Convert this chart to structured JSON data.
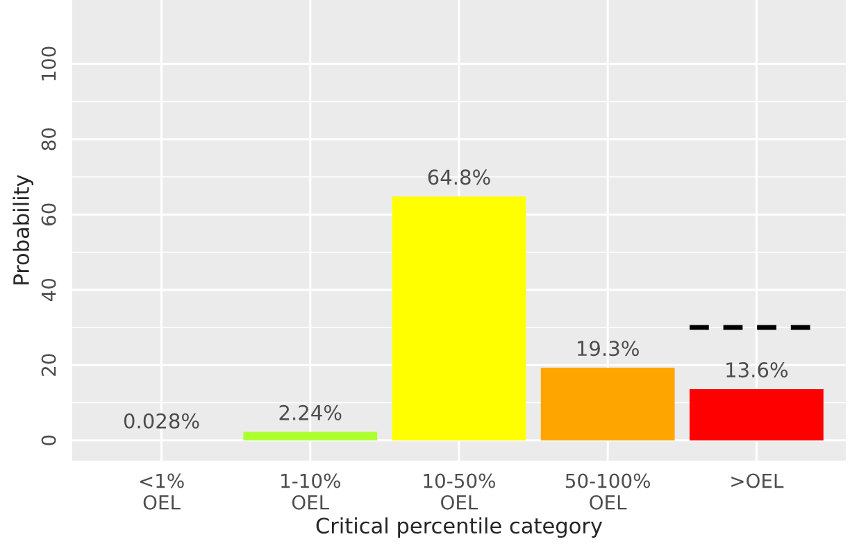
{
  "chart_data": {
    "type": "bar",
    "categories": [
      "<1%\nOEL",
      "1-10%\nOEL",
      "10-50%\nOEL",
      "50-100%\nOEL",
      ">OEL"
    ],
    "values": [
      0.028,
      2.24,
      64.8,
      19.3,
      13.6
    ],
    "colors": [
      "#ffffff",
      "#adff2f",
      "#ffff00",
      "#ffa500",
      "#ff0000"
    ],
    "value_labels": [
      "0.028%",
      "2.24%",
      "64.8%",
      "19.3%",
      "13.6%"
    ],
    "xlabel": "Critical percentile category",
    "ylabel": "Probability",
    "ylim": [
      -5.4,
      117
    ],
    "yticks": [
      0,
      20,
      40,
      60,
      80,
      100
    ],
    "ref_lines": [
      {
        "axis": "y",
        "value": 30,
        "color": "#000000",
        "line_style": "dashed"
      }
    ],
    "grid": true,
    "legend": false
  }
}
